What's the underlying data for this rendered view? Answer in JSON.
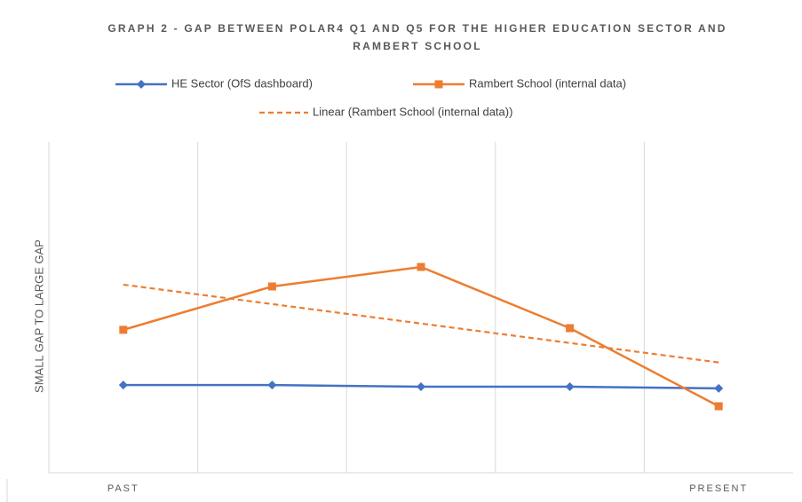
{
  "chart_data": {
    "type": "line",
    "title": "GRAPH 2 - GAP BETWEEN POLAR4 Q1 AND Q5 FOR THE HIGHER EDUCATION SECTOR AND RAMBERT SCHOOL",
    "ylabel": "SMALL GAP TO LARGE GAP",
    "categories": [
      "PAST",
      null,
      null,
      null,
      "PRESENT"
    ],
    "ylim": [
      0,
      100
    ],
    "series": [
      {
        "name": "HE Sector (OfS dashboard)",
        "color": "#4472c4",
        "marker": "diamond",
        "values": [
          26.5,
          26.5,
          26,
          26,
          25.5
        ]
      },
      {
        "name": "Rambert School (internal data)",
        "color": "#ed7d31",
        "marker": "square",
        "values": [
          43.2,
          56.3,
          62.2,
          43.7,
          20.1
        ],
        "trendline": {
          "name": "Linear (Rambert School (internal data))",
          "type": "linear",
          "dashed": true
        }
      }
    ]
  }
}
